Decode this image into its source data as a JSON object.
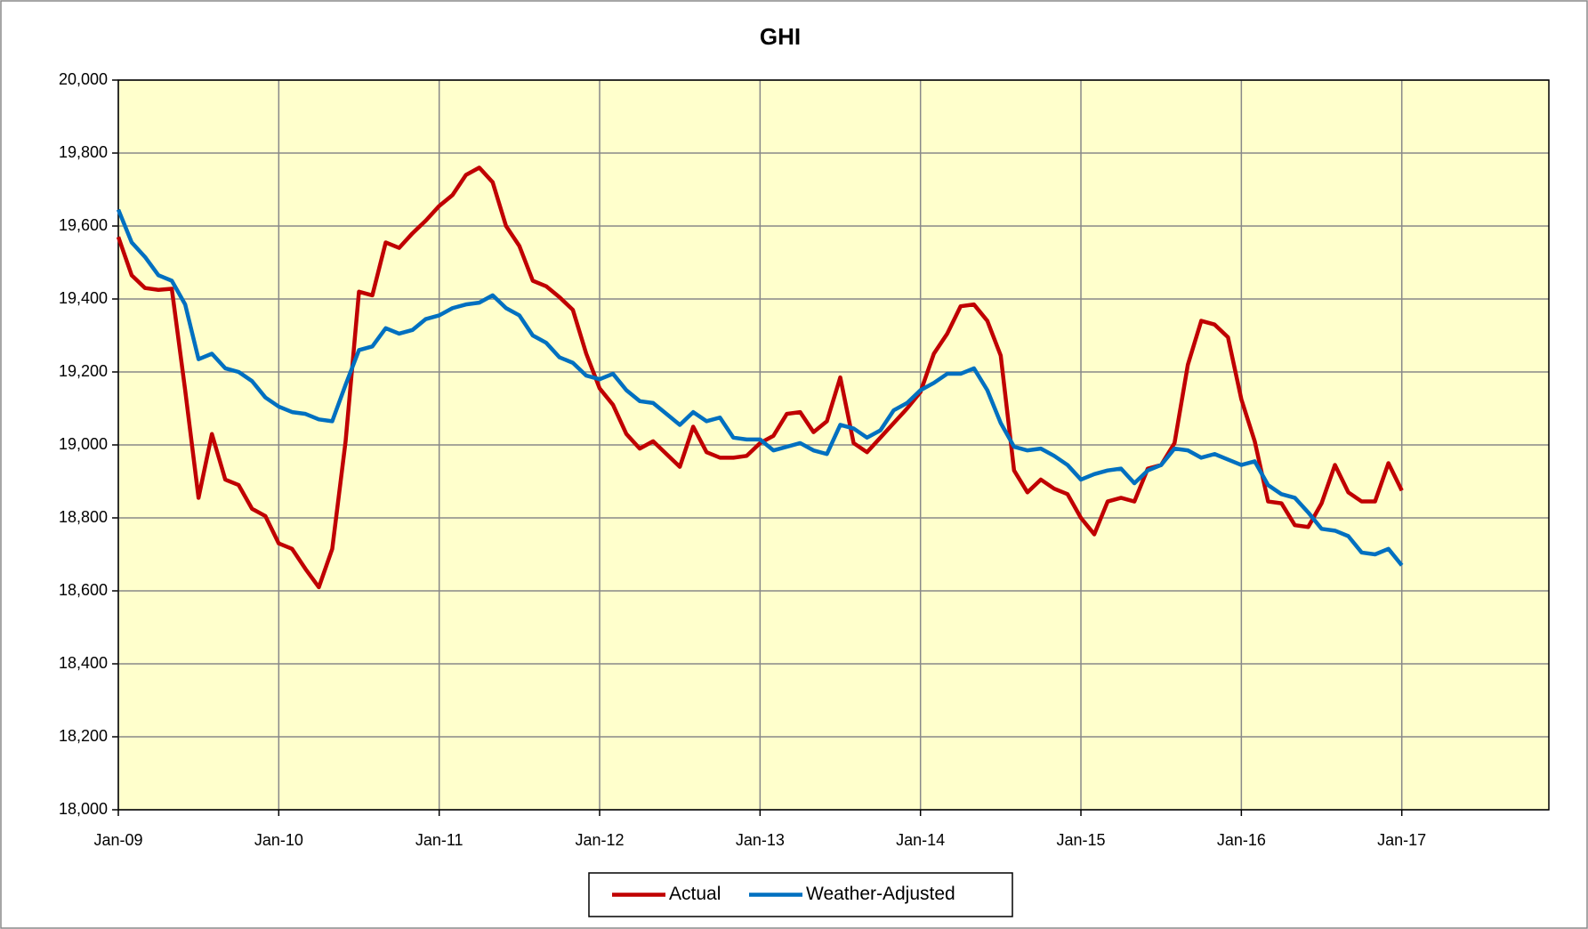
{
  "chart_data": {
    "type": "line",
    "title": "GHI",
    "x": [
      "2009-01",
      "2009-02",
      "2009-03",
      "2009-04",
      "2009-05",
      "2009-06",
      "2009-07",
      "2009-08",
      "2009-09",
      "2009-10",
      "2009-11",
      "2009-12",
      "2010-01",
      "2010-02",
      "2010-03",
      "2010-04",
      "2010-05",
      "2010-06",
      "2010-07",
      "2010-08",
      "2010-09",
      "2010-10",
      "2010-11",
      "2010-12",
      "2011-01",
      "2011-02",
      "2011-03",
      "2011-04",
      "2011-05",
      "2011-06",
      "2011-07",
      "2011-08",
      "2011-09",
      "2011-10",
      "2011-11",
      "2011-12",
      "2012-01",
      "2012-02",
      "2012-03",
      "2012-04",
      "2012-05",
      "2012-06",
      "2012-07",
      "2012-08",
      "2012-09",
      "2012-10",
      "2012-11",
      "2012-12",
      "2013-01",
      "2013-02",
      "2013-03",
      "2013-04",
      "2013-05",
      "2013-06",
      "2013-07",
      "2013-08",
      "2013-09",
      "2013-10",
      "2013-11",
      "2013-12",
      "2014-01",
      "2014-02",
      "2014-03",
      "2014-04",
      "2014-05",
      "2014-06",
      "2014-07",
      "2014-08",
      "2014-09",
      "2014-10",
      "2014-11",
      "2014-12",
      "2015-01",
      "2015-02",
      "2015-03",
      "2015-04",
      "2015-05",
      "2015-06",
      "2015-07",
      "2015-08",
      "2015-09",
      "2015-10",
      "2015-11",
      "2015-12",
      "2016-01",
      "2016-02",
      "2016-03",
      "2016-04",
      "2016-05",
      "2016-06",
      "2016-07",
      "2016-08",
      "2016-09",
      "2016-10",
      "2016-11",
      "2016-12",
      "2017-01"
    ],
    "series": [
      {
        "name": "Actual",
        "color": "#c00000",
        "values": [
          19570,
          19465,
          19430,
          19425,
          19428,
          19150,
          18855,
          19030,
          18905,
          18890,
          18825,
          18805,
          18730,
          18715,
          18660,
          18610,
          18715,
          19010,
          19420,
          19410,
          19555,
          19540,
          19580,
          19615,
          19655,
          19685,
          19740,
          19760,
          19720,
          19600,
          19545,
          19450,
          19435,
          19405,
          19370,
          19250,
          19155,
          19110,
          19030,
          18990,
          19010,
          18975,
          18940,
          19050,
          18980,
          18965,
          18965,
          18970,
          19005,
          19025,
          19085,
          19090,
          19035,
          19065,
          19185,
          19005,
          18980,
          19020,
          19060,
          19100,
          19145,
          19250,
          19305,
          19380,
          19385,
          19340,
          19245,
          18930,
          18870,
          18905,
          18880,
          18865,
          18800,
          18755,
          18845,
          18855,
          18845,
          18935,
          18945,
          19005,
          19220,
          19340,
          19330,
          19295,
          19125,
          19010,
          18845,
          18840,
          18780,
          18775,
          18840,
          18945,
          18870,
          18845,
          18845,
          18950,
          18875
        ]
      },
      {
        "name": "Weather-Adjusted",
        "color": "#0070c0",
        "values": [
          19645,
          19555,
          19515,
          19465,
          19450,
          19385,
          19235,
          19250,
          19210,
          19200,
          19175,
          19130,
          19105,
          19090,
          19085,
          19070,
          19065,
          19165,
          19260,
          19270,
          19320,
          19305,
          19315,
          19345,
          19355,
          19375,
          19385,
          19390,
          19410,
          19375,
          19355,
          19300,
          19280,
          19240,
          19225,
          19190,
          19180,
          19195,
          19150,
          19120,
          19115,
          19085,
          19055,
          19090,
          19065,
          19075,
          19020,
          19015,
          19015,
          18985,
          18995,
          19005,
          18985,
          18975,
          19055,
          19045,
          19020,
          19040,
          19095,
          19115,
          19150,
          19170,
          19195,
          19195,
          19210,
          19150,
          19060,
          18995,
          18985,
          18990,
          18970,
          18945,
          18905,
          18920,
          18930,
          18935,
          18895,
          18930,
          18945,
          18990,
          18985,
          18965,
          18975,
          18960,
          18945,
          18955,
          18890,
          18865,
          18855,
          18815,
          18770,
          18765,
          18750,
          18705,
          18700,
          18715,
          18670
        ]
      }
    ],
    "xlim": [
      "2009-01",
      "2017-12"
    ],
    "xticks": [
      {
        "value": "2009-01",
        "label": "Jan-09"
      },
      {
        "value": "2010-01",
        "label": "Jan-10"
      },
      {
        "value": "2011-01",
        "label": "Jan-11"
      },
      {
        "value": "2012-01",
        "label": "Jan-12"
      },
      {
        "value": "2013-01",
        "label": "Jan-13"
      },
      {
        "value": "2014-01",
        "label": "Jan-14"
      },
      {
        "value": "2015-01",
        "label": "Jan-15"
      },
      {
        "value": "2016-01",
        "label": "Jan-16"
      },
      {
        "value": "2017-01",
        "label": "Jan-17"
      }
    ],
    "ylim": [
      18000,
      20000
    ],
    "yticks": [
      {
        "value": 18000,
        "label": "18,000"
      },
      {
        "value": 18200,
        "label": "18,200"
      },
      {
        "value": 18400,
        "label": "18,400"
      },
      {
        "value": 18600,
        "label": "18,600"
      },
      {
        "value": 18800,
        "label": "18,800"
      },
      {
        "value": 19000,
        "label": "19,000"
      },
      {
        "value": 19200,
        "label": "19,200"
      },
      {
        "value": 19400,
        "label": "19,400"
      },
      {
        "value": 19600,
        "label": "19,600"
      },
      {
        "value": 19800,
        "label": "19,800"
      },
      {
        "value": 20000,
        "label": "20,000"
      }
    ],
    "grid": true,
    "background": "#ffffcc",
    "legend": "bottom"
  }
}
